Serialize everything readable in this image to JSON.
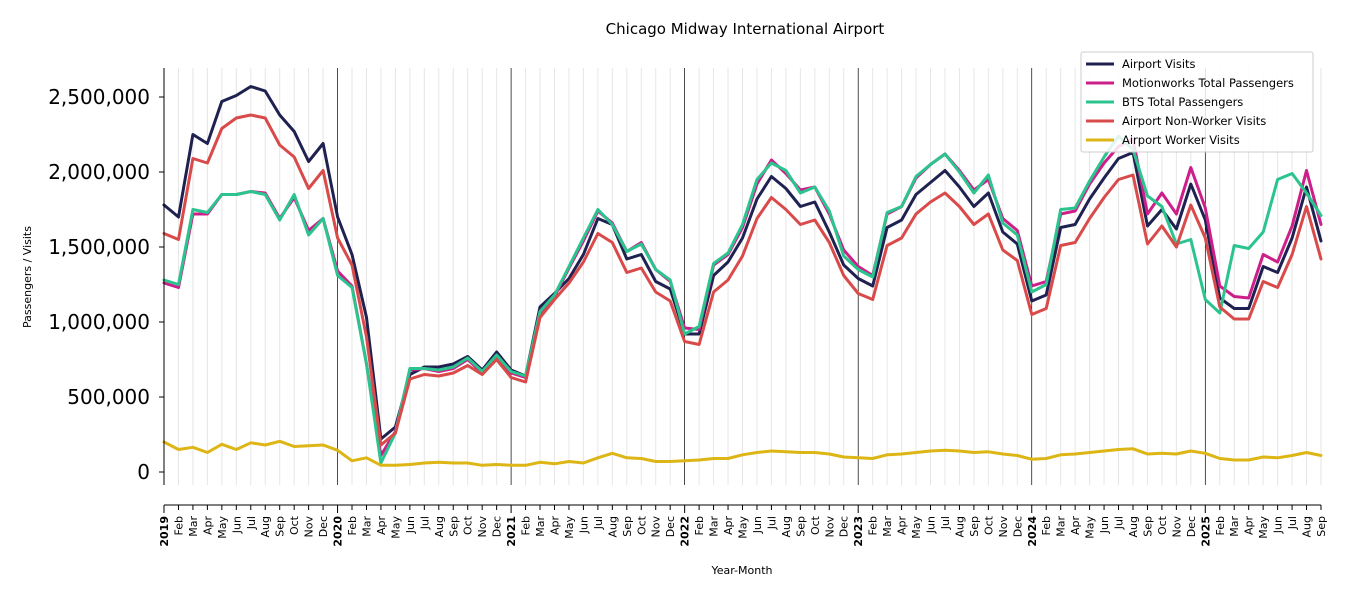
{
  "chart_data": {
    "type": "line",
    "title": "Chicago Midway International Airport",
    "xlabel": "Year-Month",
    "ylabel": "Passengers / Visits",
    "ylim": [
      -75000,
      2700000
    ],
    "yticks": [
      0,
      500000,
      1000000,
      1500000,
      2000000,
      2500000
    ],
    "ytick_labels": [
      "0",
      "500,000",
      "1,000,000",
      "1,500,000",
      "2,000,000",
      "2,500,000"
    ],
    "month_labels": [
      "Jan",
      "Feb",
      "Mar",
      "Apr",
      "May",
      "Jun",
      "Jul",
      "Aug",
      "Sep",
      "Oct",
      "Nov",
      "Dec"
    ],
    "years": [
      "2019",
      "2020",
      "2021",
      "2022",
      "2023",
      "2024",
      "2025"
    ],
    "x_start": "2019-01",
    "x_end": "2025-09",
    "grid": "vertical minor lines monthly, major lines at January",
    "legend_position": "top-right",
    "series": [
      {
        "name": "Airport Visits",
        "color": "#1f2150",
        "values": [
          1780000,
          1700000,
          2250000,
          2190000,
          2470000,
          2510000,
          2570000,
          2540000,
          2380000,
          2270000,
          2070000,
          2190000,
          1700000,
          1450000,
          1030000,
          220000,
          300000,
          650000,
          700000,
          700000,
          720000,
          770000,
          680000,
          800000,
          680000,
          640000,
          1100000,
          1190000,
          1290000,
          1450000,
          1690000,
          1650000,
          1420000,
          1450000,
          1270000,
          1220000,
          920000,
          920000,
          1310000,
          1400000,
          1560000,
          1820000,
          1970000,
          1890000,
          1770000,
          1800000,
          1600000,
          1380000,
          1290000,
          1240000,
          1630000,
          1680000,
          1850000,
          1930000,
          2010000,
          1900000,
          1770000,
          1860000,
          1600000,
          1520000,
          1140000,
          1180000,
          1630000,
          1650000,
          1820000,
          1960000,
          2090000,
          2130000,
          1640000,
          1750000,
          1620000,
          1920000,
          1680000,
          1160000,
          1090000,
          1090000,
          1370000,
          1330000,
          1560000,
          1900000,
          1540000
        ]
      },
      {
        "name": "Motionworks Total Passengers",
        "color": "#cc1f8a",
        "values": [
          1260000,
          1230000,
          1720000,
          1720000,
          1850000,
          1850000,
          1870000,
          1860000,
          1690000,
          1830000,
          1610000,
          1690000,
          1340000,
          1240000,
          720000,
          110000,
          270000,
          680000,
          690000,
          670000,
          690000,
          750000,
          660000,
          760000,
          660000,
          630000,
          1060000,
          1170000,
          1360000,
          1540000,
          1740000,
          1660000,
          1470000,
          1530000,
          1350000,
          1270000,
          960000,
          950000,
          1380000,
          1450000,
          1630000,
          1920000,
          2080000,
          1990000,
          1880000,
          1900000,
          1720000,
          1480000,
          1370000,
          1310000,
          1720000,
          1770000,
          1960000,
          2050000,
          2120000,
          2010000,
          1880000,
          1950000,
          1690000,
          1610000,
          1240000,
          1270000,
          1720000,
          1740000,
          1920000,
          2060000,
          2170000,
          2220000,
          1720000,
          1860000,
          1720000,
          2030000,
          1760000,
          1240000,
          1170000,
          1160000,
          1450000,
          1400000,
          1640000,
          2010000,
          1650000
        ]
      },
      {
        "name": "BTS Total Passengers",
        "color": "#2cc48e",
        "values": [
          1280000,
          1250000,
          1750000,
          1730000,
          1850000,
          1850000,
          1870000,
          1850000,
          1680000,
          1850000,
          1580000,
          1690000,
          1310000,
          1230000,
          720000,
          60000,
          260000,
          690000,
          690000,
          680000,
          700000,
          760000,
          670000,
          780000,
          670000,
          640000,
          1070000,
          1180000,
          1370000,
          1560000,
          1750000,
          1650000,
          1470000,
          1520000,
          1350000,
          1280000,
          920000,
          970000,
          1390000,
          1460000,
          1650000,
          1950000,
          2060000,
          2010000,
          1860000,
          1900000,
          1740000,
          1440000,
          1350000,
          1300000,
          1730000,
          1770000,
          1970000,
          2050000,
          2120000,
          2000000,
          1860000,
          1980000,
          1660000,
          1580000,
          1200000,
          1250000,
          1750000,
          1760000,
          1940000,
          2100000,
          2240000,
          2150000,
          1840000,
          1770000,
          1520000,
          1550000,
          1150000,
          1060000,
          1510000,
          1490000,
          1600000,
          1950000,
          1990000,
          1860000,
          1710000
        ]
      },
      {
        "name": "Airport Non-Worker Visits",
        "color": "#d94a4a",
        "values": [
          1590000,
          1550000,
          2090000,
          2060000,
          2290000,
          2360000,
          2380000,
          2360000,
          2180000,
          2100000,
          1890000,
          2010000,
          1560000,
          1380000,
          900000,
          180000,
          260000,
          620000,
          650000,
          640000,
          660000,
          710000,
          650000,
          750000,
          630000,
          600000,
          1030000,
          1150000,
          1260000,
          1400000,
          1590000,
          1530000,
          1330000,
          1360000,
          1200000,
          1140000,
          870000,
          850000,
          1200000,
          1280000,
          1440000,
          1690000,
          1830000,
          1750000,
          1650000,
          1680000,
          1530000,
          1310000,
          1190000,
          1150000,
          1510000,
          1560000,
          1720000,
          1800000,
          1860000,
          1770000,
          1650000,
          1720000,
          1480000,
          1410000,
          1050000,
          1090000,
          1510000,
          1530000,
          1690000,
          1830000,
          1950000,
          1980000,
          1520000,
          1640000,
          1500000,
          1780000,
          1560000,
          1100000,
          1020000,
          1020000,
          1270000,
          1230000,
          1450000,
          1770000,
          1420000
        ]
      },
      {
        "name": "Airport Worker Visits",
        "color": "#ddb514",
        "values": [
          200000,
          150000,
          165000,
          130000,
          185000,
          150000,
          195000,
          180000,
          205000,
          170000,
          175000,
          180000,
          145000,
          75000,
          95000,
          45000,
          45000,
          50000,
          60000,
          65000,
          60000,
          60000,
          45000,
          50000,
          45000,
          45000,
          65000,
          55000,
          70000,
          60000,
          95000,
          125000,
          95000,
          90000,
          70000,
          70000,
          75000,
          80000,
          90000,
          90000,
          115000,
          130000,
          140000,
          135000,
          130000,
          130000,
          120000,
          100000,
          95000,
          90000,
          115000,
          120000,
          130000,
          140000,
          145000,
          140000,
          130000,
          135000,
          120000,
          110000,
          85000,
          90000,
          115000,
          120000,
          130000,
          140000,
          150000,
          155000,
          120000,
          125000,
          120000,
          140000,
          125000,
          90000,
          80000,
          80000,
          100000,
          95000,
          110000,
          130000,
          110000
        ]
      }
    ]
  }
}
